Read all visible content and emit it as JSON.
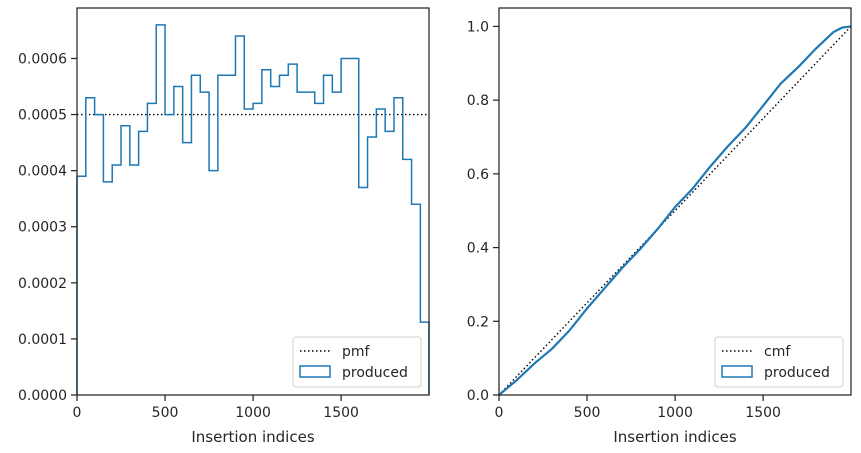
{
  "chart_data": [
    {
      "type": "step",
      "title": "",
      "xlabel": "Insertion indices",
      "ylabel": "",
      "xlim": [
        0,
        1999
      ],
      "ylim": [
        0,
        0.00069
      ],
      "x_ticks": [
        0,
        500,
        1000,
        1500
      ],
      "x_tick_labels": [
        "0",
        "500",
        "1000",
        "1500"
      ],
      "y_ticks": [
        0,
        0.0001,
        0.0002,
        0.0003,
        0.0004,
        0.0005,
        0.0006
      ],
      "y_tick_labels": [
        "0.0000",
        "0.0001",
        "0.0002",
        "0.0003",
        "0.0004",
        "0.0005",
        "0.0006"
      ],
      "legend_position": "lower-right",
      "series": [
        {
          "name": "pmf",
          "style": "dotted",
          "color": "#000000",
          "x": [
            0,
            1999
          ],
          "values": [
            0.0005,
            0.0005
          ]
        },
        {
          "name": "produced",
          "style": "step",
          "color": "#1f77b4",
          "bin_edges": [
            0,
            50,
            100,
            150,
            200,
            250,
            300,
            350,
            400,
            450,
            500,
            550,
            600,
            650,
            700,
            750,
            800,
            850,
            900,
            950,
            1000,
            1050,
            1100,
            1150,
            1200,
            1250,
            1300,
            1350,
            1400,
            1450,
            1500,
            1550,
            1600,
            1650,
            1700,
            1750,
            1800,
            1850,
            1900,
            1950,
            1999
          ],
          "values": [
            0.00039,
            0.00053,
            0.0005,
            0.00038,
            0.00041,
            0.00048,
            0.00041,
            0.00047,
            0.00052,
            0.00066,
            0.0005,
            0.00055,
            0.00045,
            0.00057,
            0.00054,
            0.0004,
            0.00057,
            0.00057,
            0.00064,
            0.00051,
            0.00052,
            0.00058,
            0.00055,
            0.00057,
            0.00059,
            0.00054,
            0.00054,
            0.00052,
            0.00057,
            0.00054,
            0.0006,
            0.0006,
            0.00037,
            0.00046,
            0.00051,
            0.00047,
            0.00053,
            0.00042,
            0.00034,
            0.00013
          ]
        }
      ]
    },
    {
      "type": "line",
      "title": "",
      "xlabel": "Insertion indices",
      "ylabel": "",
      "xlim": [
        0,
        1999
      ],
      "ylim": [
        0,
        1.05
      ],
      "x_ticks": [
        0,
        500,
        1000,
        1500
      ],
      "x_tick_labels": [
        "0",
        "500",
        "1000",
        "1500"
      ],
      "y_ticks": [
        0,
        0.2,
        0.4,
        0.6,
        0.8,
        1.0
      ],
      "y_tick_labels": [
        "0.0",
        "0.2",
        "0.4",
        "0.6",
        "0.8",
        "1.0"
      ],
      "legend_position": "lower-right",
      "series": [
        {
          "name": "cmf",
          "style": "dotted",
          "color": "#000000",
          "x": [
            0,
            1999
          ],
          "values": [
            0,
            1.0
          ]
        },
        {
          "name": "produced",
          "style": "step",
          "color": "#1f77b4",
          "x": [
            0,
            100,
            200,
            300,
            400,
            500,
            600,
            700,
            800,
            900,
            1000,
            1100,
            1200,
            1300,
            1400,
            1500,
            1600,
            1700,
            1800,
            1900,
            1950,
            1999
          ],
          "values": [
            0,
            0.04,
            0.085,
            0.125,
            0.175,
            0.235,
            0.29,
            0.345,
            0.395,
            0.45,
            0.51,
            0.56,
            0.62,
            0.675,
            0.725,
            0.785,
            0.845,
            0.89,
            0.94,
            0.985,
            0.997,
            1.0
          ]
        }
      ]
    }
  ]
}
